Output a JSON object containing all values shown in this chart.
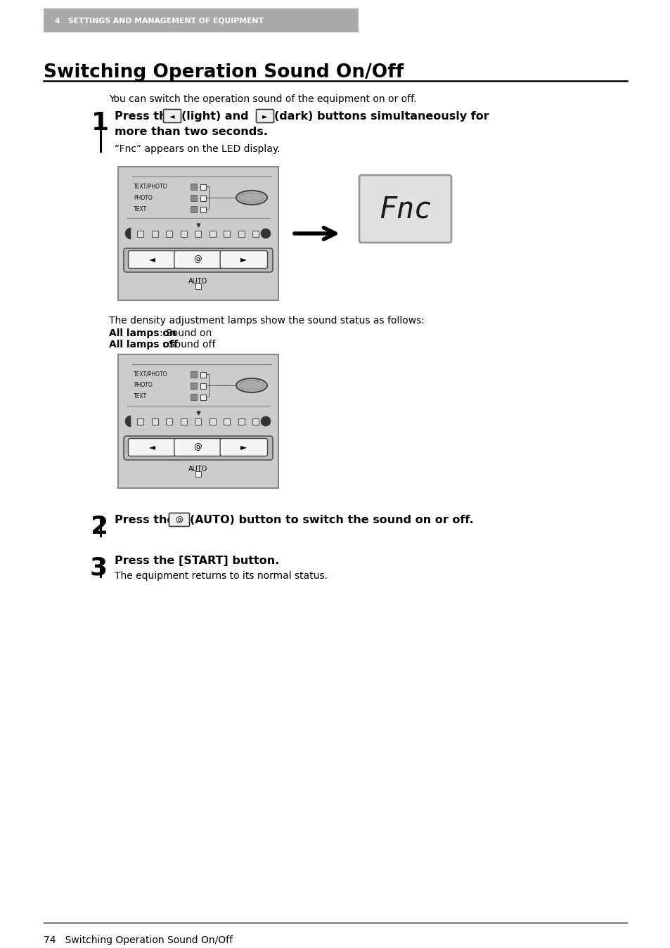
{
  "page_bg": "#ffffff",
  "header_bg": "#aaaaaa",
  "header_text": "4   SETTINGS AND MANAGEMENT OF EQUIPMENT",
  "header_text_color": "#ffffff",
  "title": "Switching Operation Sound On/Off",
  "title_color": "#000000",
  "intro_text": "You can switch the operation sound of the equipment on or off.",
  "step1_sub": "“Fnc” appears on the LED display.",
  "density_text1": "The density adjustment lamps show the sound status as follows:",
  "density_text2_bold": "All lamps on",
  "density_text2_rest": ": Sound on",
  "density_text3_bold": "All lamps off",
  "density_text3_rest": ": Sound off",
  "step2_bold": "Press the      (AUTO) button to switch the sound on or off.",
  "step3_bold": "Press the [START] button.",
  "step3_sub": "The equipment returns to its normal status.",
  "footer_text": "74   Switching Operation Sound On/Off",
  "panel_bg": "#cccccc",
  "panel_border": "#888888"
}
